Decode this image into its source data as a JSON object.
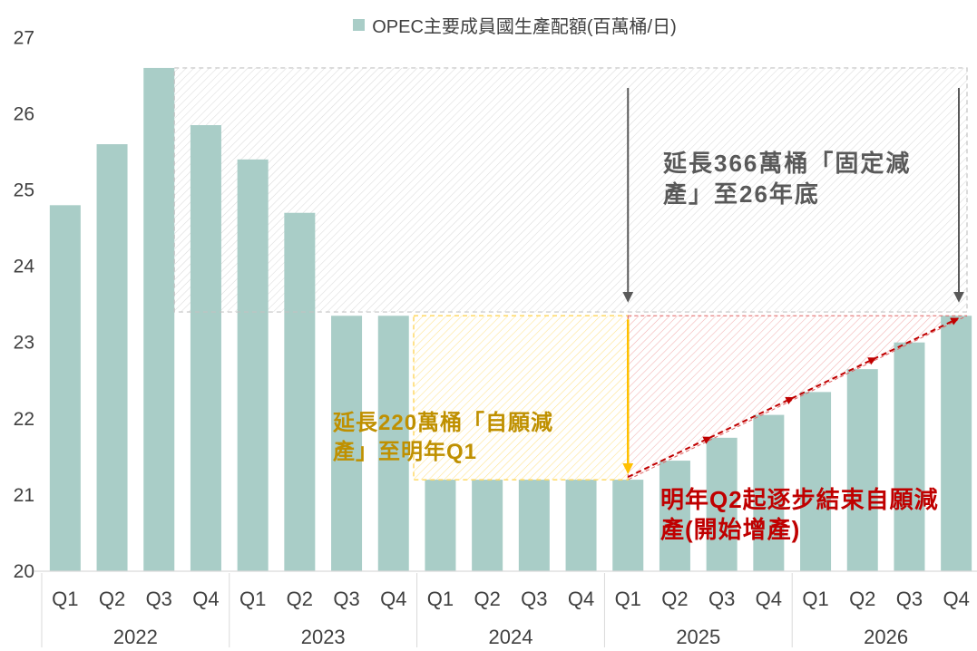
{
  "chart_data": {
    "type": "bar",
    "legend": "OPEC主要成員國生產配額(百萬桶/日)",
    "legend_position": "top",
    "bar_color": "#a9cdc7",
    "grid": false,
    "ylim": [
      20,
      27
    ],
    "yticks": [
      20,
      21,
      22,
      23,
      24,
      25,
      26,
      27
    ],
    "quarters": [
      "Q1",
      "Q2",
      "Q3",
      "Q4",
      "Q1",
      "Q2",
      "Q3",
      "Q4",
      "Q1",
      "Q2",
      "Q3",
      "Q4",
      "Q1",
      "Q2",
      "Q3",
      "Q4",
      "Q1",
      "Q2",
      "Q3",
      "Q4"
    ],
    "years": [
      "2022",
      "2023",
      "2024",
      "2025",
      "2026"
    ],
    "values": [
      24.8,
      25.6,
      26.6,
      25.85,
      25.4,
      24.7,
      23.35,
      23.35,
      21.2,
      21.2,
      21.2,
      21.2,
      21.2,
      21.45,
      21.75,
      22.05,
      22.35,
      22.65,
      23.0,
      23.35
    ],
    "annotations": {
      "fixed_cut": {
        "text": "延長366萬桶「固定減\n產」至26年底",
        "color": "#595959",
        "region": {
          "from": "2022 Q3",
          "to": "2026 Q4",
          "y_top": 26.6,
          "y_bottom": 23.4,
          "hatch_color": "#dadada"
        }
      },
      "voluntary_cut": {
        "text": "延長220萬桶「自願減\n產」至明年Q1",
        "color": "#bf9000",
        "region": {
          "from": "2024 Q1",
          "to": "2025 Q1",
          "y_top": 23.35,
          "y_bottom": 21.2,
          "hatch_color": "#ffe28a"
        }
      },
      "ramp_up": {
        "text": "明年Q2起逐步結束自願減\n產(開始增產)",
        "color": "#c00000",
        "region": {
          "from": "2025 Q1",
          "to": "2026 Q4",
          "y_top": 23.35,
          "diagonal_from": 21.2,
          "diagonal_to": 23.35,
          "hatch_color": "#f2b1b1"
        }
      },
      "down_arrow_color": "#ffc000",
      "gray_arrow_color": "#595959"
    }
  }
}
